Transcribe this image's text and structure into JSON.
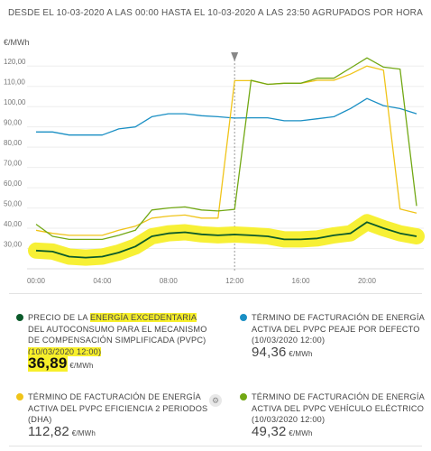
{
  "header": {
    "title": "DESDE EL 10-03-2020 A LAS 00:00 HASTA EL 10-03-2020 A LAS 23:50 AGRUPADOS POR HORA",
    "y_unit": "€/MWh"
  },
  "chart_data": {
    "type": "line",
    "x": [
      0,
      1,
      2,
      3,
      4,
      5,
      6,
      7,
      8,
      9,
      10,
      11,
      12,
      13,
      14,
      15,
      16,
      17,
      18,
      19,
      20,
      21,
      22,
      23
    ],
    "x_tick_labels": [
      "00:00",
      "04:00",
      "08:00",
      "12:00",
      "16:00",
      "20:00"
    ],
    "x_tick_positions": [
      0,
      4,
      8,
      12,
      16,
      20
    ],
    "y_ticks": [
      30,
      40,
      50,
      60,
      70,
      80,
      90,
      100,
      110,
      120
    ],
    "y_tick_labels": [
      "30,00",
      "40,00",
      "50,00",
      "60,00",
      "70,00",
      "80,00",
      "90,00",
      "100,00",
      "110,00",
      "120,00"
    ],
    "ylim": [
      20,
      125
    ],
    "xlim": [
      0,
      23
    ],
    "cursor_hour": 12,
    "grid": true,
    "series": [
      {
        "name": "ENERGÍA EXCEDENTARIA",
        "color": "#0b5a2a",
        "highlight": "#f7ef2a",
        "values": [
          29,
          28.5,
          26,
          25.5,
          26,
          28,
          31,
          36,
          37.5,
          38,
          37,
          36.5,
          36.89,
          36.5,
          36,
          34.5,
          34.5,
          35,
          36.5,
          37.5,
          43,
          40,
          37.5,
          36
        ]
      },
      {
        "name": "PEAJE POR DEFECTO",
        "color": "#1a8fc4",
        "values": [
          87.5,
          87.5,
          86,
          86,
          86,
          89,
          90,
          95,
          96.5,
          96.5,
          95.5,
          95,
          94.36,
          94.5,
          94.5,
          93,
          93,
          94,
          95,
          99,
          104,
          100.5,
          99,
          96.5
        ]
      },
      {
        "name": "EFICIENCIA 2 PERIODOS (DHA)",
        "color": "#f0c419",
        "values": [
          39,
          37.5,
          36.5,
          36.5,
          36.5,
          39,
          41,
          45,
          46,
          46.5,
          45,
          45,
          112.82,
          112.82,
          111,
          111.5,
          111.5,
          113,
          113,
          116,
          120,
          118,
          49.5,
          47.5
        ]
      },
      {
        "name": "VEHÍCULO ELÉCTRICO",
        "color": "#72a814",
        "values": [
          42,
          36,
          34.5,
          34.5,
          34.5,
          36.5,
          39,
          49,
          50,
          50.5,
          49,
          48.5,
          49.32,
          113,
          111,
          111.5,
          111.5,
          114,
          114,
          119,
          124,
          119.5,
          118.5,
          51
        ]
      }
    ]
  },
  "cards": [
    {
      "color": "#0b5a2a",
      "title_pre": "PRECIO DE LA ",
      "title_hl": "ENERGÍA EXCEDENTARIA",
      "title_post": " DEL AUTOCONSUMO PARA EL MECANISMO DE COMPENSACIÓN SIMPLIFICADA (PVPC)",
      "date": "(10/03/2020 12:00)",
      "value": "36,89",
      "unit": "€/MWh"
    },
    {
      "color": "#1a8fc4",
      "title": "TÉRMINO DE FACTURACIÓN DE ENERGÍA ACTIVA DEL PVPC PEAJE POR DEFECTO",
      "date": "(10/03/2020 12:00)",
      "value": "94,36",
      "unit": "€/MWh"
    },
    {
      "color": "#f0c419",
      "title": "TÉRMINO DE FACTURACIÓN DE ENERGÍA ACTIVA DEL PVPC EFICIENCIA 2 PERIODOS (DHA)",
      "date": "(10/03/2020 12:00)",
      "value": "112,82",
      "unit": "€/MWh"
    },
    {
      "color": "#72a814",
      "title": "TÉRMINO DE FACTURACIÓN DE ENERGÍA ACTIVA DEL PVPC VEHÍCULO ELÉCTRICO",
      "date": "(10/03/2020 12:00)",
      "value": "49,32",
      "unit": "€/MWh"
    }
  ],
  "icons": {
    "mid_icon": "settings-icon"
  }
}
